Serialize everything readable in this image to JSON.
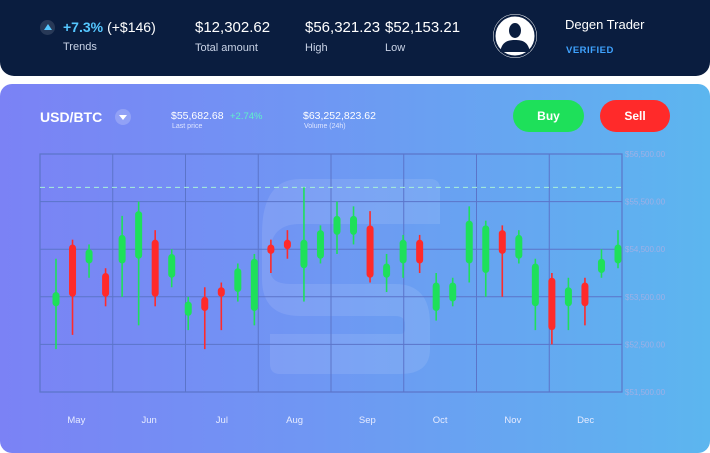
{
  "header": {
    "trend": {
      "percent": "+7.3%",
      "amount": "(+$146)",
      "label": "Trends"
    },
    "total": {
      "value": "$12,302.62",
      "label": "Total amount"
    },
    "high": {
      "value": "$56,321.23",
      "label": "High"
    },
    "low": {
      "value": "$52,153.21",
      "label": "Low"
    },
    "user": {
      "name": "Degen Trader",
      "status": "VERIFIED",
      "avatar_icon": "user-silhouette-icon"
    }
  },
  "market": {
    "pair": "USD/BTC",
    "last_price": "$55,682.68",
    "change": "+2.74%",
    "last_price_label": "Last price",
    "volume": "$63,252,823.62",
    "volume_label": "Volume (24h)",
    "buy_label": "Buy",
    "sell_label": "Sell"
  },
  "colors": {
    "up": "#1ee05a",
    "down": "#ff2a2a",
    "header_bg": "#0a1d3f",
    "accent": "#55c7ff"
  },
  "chart_data": {
    "type": "candlestick",
    "x_labels": [
      "May",
      "Jun",
      "Jul",
      "Aug",
      "Sep",
      "Oct",
      "Nov",
      "Dec"
    ],
    "y_labels": [
      "$56,500.00",
      "$55,500.00",
      "$54,500.00",
      "$53,500.00",
      "$52,500.00",
      "$51,500.00"
    ],
    "ylim": [
      51500,
      56500
    ],
    "reference_line": 55800,
    "grid": true,
    "candles": [
      {
        "o": 53600,
        "c": 53300,
        "h": 54300,
        "l": 52400,
        "dir": "up"
      },
      {
        "o": 54600,
        "c": 53500,
        "h": 54700,
        "l": 52700,
        "dir": "down"
      },
      {
        "o": 54500,
        "c": 54200,
        "h": 54600,
        "l": 53900,
        "dir": "up"
      },
      {
        "o": 54000,
        "c": 53500,
        "h": 54100,
        "l": 53300,
        "dir": "down"
      },
      {
        "o": 54200,
        "c": 54800,
        "h": 55200,
        "l": 53500,
        "dir": "up"
      },
      {
        "o": 55300,
        "c": 54300,
        "h": 55500,
        "l": 52900,
        "dir": "up"
      },
      {
        "o": 54700,
        "c": 53500,
        "h": 54900,
        "l": 53300,
        "dir": "down"
      },
      {
        "o": 53900,
        "c": 54400,
        "h": 54500,
        "l": 53700,
        "dir": "up"
      },
      {
        "o": 53400,
        "c": 53100,
        "h": 53500,
        "l": 52800,
        "dir": "up"
      },
      {
        "o": 53500,
        "c": 53200,
        "h": 53700,
        "l": 52400,
        "dir": "down"
      },
      {
        "o": 53700,
        "c": 53500,
        "h": 53800,
        "l": 52800,
        "dir": "down"
      },
      {
        "o": 54100,
        "c": 53600,
        "h": 54200,
        "l": 53400,
        "dir": "up"
      },
      {
        "o": 54300,
        "c": 53200,
        "h": 54400,
        "l": 52900,
        "dir": "up"
      },
      {
        "o": 54600,
        "c": 54400,
        "h": 54700,
        "l": 54000,
        "dir": "down"
      },
      {
        "o": 54700,
        "c": 54500,
        "h": 54900,
        "l": 54300,
        "dir": "down"
      },
      {
        "o": 54700,
        "c": 54100,
        "h": 55800,
        "l": 53400,
        "dir": "up"
      },
      {
        "o": 54900,
        "c": 54300,
        "h": 55000,
        "l": 54200,
        "dir": "up"
      },
      {
        "o": 55200,
        "c": 54800,
        "h": 55500,
        "l": 54400,
        "dir": "up"
      },
      {
        "o": 54800,
        "c": 55200,
        "h": 55400,
        "l": 54600,
        "dir": "up"
      },
      {
        "o": 55000,
        "c": 53900,
        "h": 55300,
        "l": 53800,
        "dir": "down"
      },
      {
        "o": 54200,
        "c": 53900,
        "h": 54400,
        "l": 53600,
        "dir": "up"
      },
      {
        "o": 54700,
        "c": 54200,
        "h": 54800,
        "l": 53900,
        "dir": "up"
      },
      {
        "o": 54700,
        "c": 54200,
        "h": 54800,
        "l": 54000,
        "dir": "down"
      },
      {
        "o": 53800,
        "c": 53200,
        "h": 54000,
        "l": 53000,
        "dir": "up"
      },
      {
        "o": 53800,
        "c": 53400,
        "h": 53900,
        "l": 53300,
        "dir": "up"
      },
      {
        "o": 55100,
        "c": 54200,
        "h": 55400,
        "l": 53800,
        "dir": "up"
      },
      {
        "o": 55000,
        "c": 54000,
        "h": 55100,
        "l": 53500,
        "dir": "up"
      },
      {
        "o": 54900,
        "c": 54400,
        "h": 55000,
        "l": 53500,
        "dir": "down"
      },
      {
        "o": 54800,
        "c": 54300,
        "h": 54900,
        "l": 54200,
        "dir": "up"
      },
      {
        "o": 54200,
        "c": 53300,
        "h": 54300,
        "l": 52800,
        "dir": "up"
      },
      {
        "o": 53900,
        "c": 52800,
        "h": 54000,
        "l": 52500,
        "dir": "down"
      },
      {
        "o": 53700,
        "c": 53300,
        "h": 53900,
        "l": 52800,
        "dir": "up"
      },
      {
        "o": 53800,
        "c": 53300,
        "h": 53900,
        "l": 52900,
        "dir": "down"
      },
      {
        "o": 54300,
        "c": 54000,
        "h": 54500,
        "l": 53900,
        "dir": "up"
      },
      {
        "o": 54600,
        "c": 54200,
        "h": 54900,
        "l": 54100,
        "dir": "up"
      }
    ]
  }
}
